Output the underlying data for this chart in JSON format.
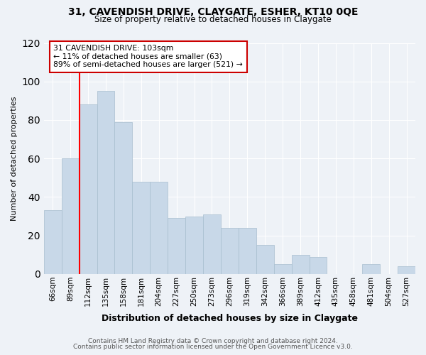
{
  "title": "31, CAVENDISH DRIVE, CLAYGATE, ESHER, KT10 0QE",
  "subtitle": "Size of property relative to detached houses in Claygate",
  "xlabel": "Distribution of detached houses by size in Claygate",
  "ylabel": "Number of detached properties",
  "footnote1": "Contains HM Land Registry data © Crown copyright and database right 2024.",
  "footnote2": "Contains public sector information licensed under the Open Government Licence v3.0.",
  "bar_labels": [
    "66sqm",
    "89sqm",
    "112sqm",
    "135sqm",
    "158sqm",
    "181sqm",
    "204sqm",
    "227sqm",
    "250sqm",
    "273sqm",
    "296sqm",
    "319sqm",
    "342sqm",
    "366sqm",
    "389sqm",
    "412sqm",
    "435sqm",
    "458sqm",
    "481sqm",
    "504sqm",
    "527sqm"
  ],
  "bar_values": [
    33,
    60,
    88,
    95,
    79,
    48,
    48,
    29,
    30,
    31,
    24,
    24,
    15,
    5,
    10,
    9,
    0,
    0,
    5,
    0,
    4
  ],
  "bar_color": "#c8d8e8",
  "bar_edge_color": "#a8bece",
  "ylim": [
    0,
    120
  ],
  "yticks": [
    0,
    20,
    40,
    60,
    80,
    100,
    120
  ],
  "red_line_x": 1.5,
  "annotation_title": "31 CAVENDISH DRIVE: 103sqm",
  "annotation_line1": "← 11% of detached houses are smaller (63)",
  "annotation_line2": "89% of semi-detached houses are larger (521) →",
  "annotation_box_color": "#ffffff",
  "annotation_box_edge_color": "#cc0000",
  "bg_color": "#eef2f7",
  "grid_color": "#ffffff",
  "title_fontsize": 10,
  "subtitle_fontsize": 8.5,
  "ylabel_fontsize": 8,
  "xlabel_fontsize": 9,
  "footnote_fontsize": 6.5
}
